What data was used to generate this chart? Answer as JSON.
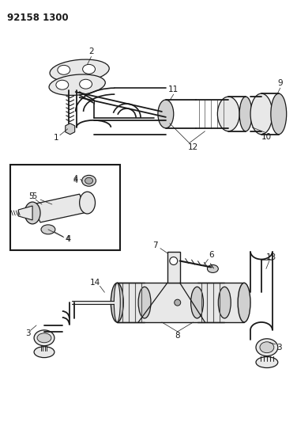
{
  "title": "92158 1300",
  "bg_color": "#ffffff",
  "line_color": "#1a1a1a",
  "fill_light": "#e8e8e8",
  "fill_mid": "#d0d0d0",
  "fill_dark": "#b0b0b0",
  "title_fontsize": 8.5,
  "label_fontsize": 7.5
}
